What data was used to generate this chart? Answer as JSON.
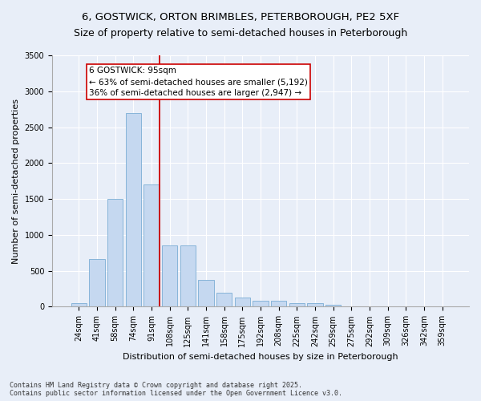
{
  "title1": "6, GOSTWICK, ORTON BRIMBLES, PETERBOROUGH, PE2 5XF",
  "title2": "Size of property relative to semi-detached houses in Peterborough",
  "xlabel": "Distribution of semi-detached houses by size in Peterborough",
  "ylabel": "Number of semi-detached properties",
  "categories": [
    "24sqm",
    "41sqm",
    "58sqm",
    "74sqm",
    "91sqm",
    "108sqm",
    "125sqm",
    "141sqm",
    "158sqm",
    "175sqm",
    "192sqm",
    "208sqm",
    "225sqm",
    "242sqm",
    "259sqm",
    "275sqm",
    "292sqm",
    "309sqm",
    "326sqm",
    "342sqm",
    "359sqm"
  ],
  "values": [
    50,
    660,
    1500,
    2700,
    1700,
    850,
    850,
    370,
    200,
    130,
    80,
    80,
    50,
    50,
    30,
    10,
    10,
    5,
    2,
    1,
    0
  ],
  "bar_color": "#c5d8f0",
  "bar_edge_color": "#7aadd4",
  "line_color": "#cc0000",
  "line_x_index": 4,
  "annotation_text": "6 GOSTWICK: 95sqm\n← 63% of semi-detached houses are smaller (5,192)\n36% of semi-detached houses are larger (2,947) →",
  "annotation_box_facecolor": "#ffffff",
  "annotation_box_edgecolor": "#cc0000",
  "ylim": [
    0,
    3500
  ],
  "yticks": [
    0,
    500,
    1000,
    1500,
    2000,
    2500,
    3000,
    3500
  ],
  "footnote": "Contains HM Land Registry data © Crown copyright and database right 2025.\nContains public sector information licensed under the Open Government Licence v3.0.",
  "bg_color": "#e8eef8",
  "plot_bg_color": "#e8eef8",
  "grid_color": "#ffffff",
  "title_fontsize": 9.5,
  "axis_label_fontsize": 8,
  "tick_fontsize": 7,
  "annot_fontsize": 7.5,
  "footnote_fontsize": 6
}
